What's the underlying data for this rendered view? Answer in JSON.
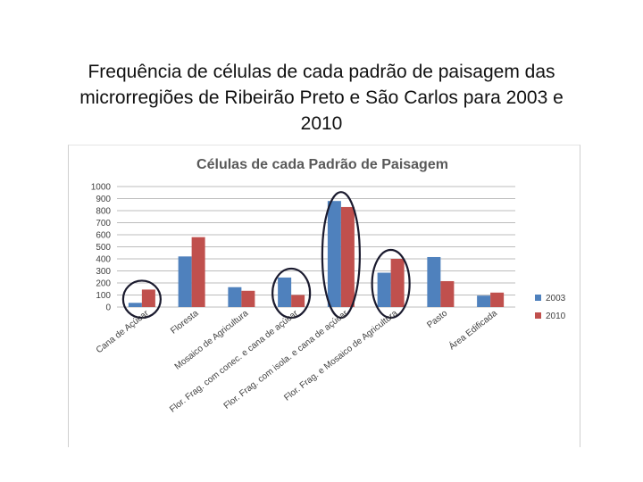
{
  "slide": {
    "title_line1": "Frequência de células de cada padrão de paisagem das",
    "title_line2": "microrregiões de Ribeirão Preto e São Carlos para 2003 e",
    "title_line3": "2010"
  },
  "chart_data": {
    "type": "bar",
    "title": "Células de cada Padrão de Paisagem",
    "categories": [
      "Cana de Açúcar",
      "Floresta",
      "Mosaico de Agricultura",
      "Flor. Frag. com conec. e cana de açúcar",
      "Flor. Frag. com isola. e cana de açúcar",
      "Flor. Frag. e Mosaico de Agricultura",
      "Pasto",
      "Área Edificada"
    ],
    "series": [
      {
        "name": "2003",
        "color": "#4F81BD",
        "values": [
          35,
          420,
          165,
          245,
          880,
          285,
          415,
          95
        ]
      },
      {
        "name": "2010",
        "color": "#C0504D",
        "values": [
          145,
          580,
          135,
          100,
          830,
          400,
          215,
          120
        ]
      }
    ],
    "ylim": [
      0,
      1000
    ],
    "yticks": [
      0,
      100,
      200,
      300,
      400,
      500,
      600,
      700,
      800,
      900,
      1000
    ],
    "grid": true,
    "legend": "right",
    "annotations": {
      "circled_categories": [
        "Cana de Açúcar",
        "Flor. Frag. com conec. e cana de açúcar",
        "Flor. Frag. com isola. e cana de açúcar",
        "Flor. Frag. e Mosaico de Agricultura"
      ],
      "circle_color": "#1a1a2e"
    }
  }
}
